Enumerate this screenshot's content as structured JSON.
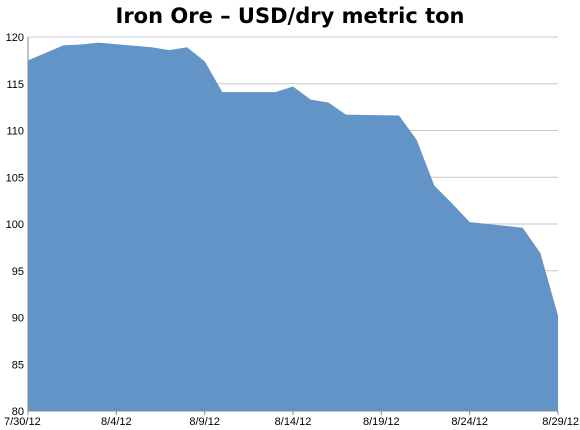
{
  "chart_data": {
    "type": "area",
    "title": "Iron Ore – USD/dry metric ton",
    "xlabel": "",
    "ylabel": "",
    "x_tick_labels": [
      "7/30/12",
      "8/4/12",
      "8/9/12",
      "8/14/12",
      "8/19/12",
      "8/24/12",
      "8/29/12"
    ],
    "y_tick_labels": [
      "80",
      "85",
      "90",
      "95",
      "100",
      "105",
      "110",
      "115",
      "120"
    ],
    "ylim": [
      80,
      120
    ],
    "xlim": [
      "2012-07-30",
      "2012-08-29"
    ],
    "grid": true,
    "x": [
      "2012-07-30",
      "2012-07-31",
      "2012-08-01",
      "2012-08-02",
      "2012-08-03",
      "2012-08-06",
      "2012-08-07",
      "2012-08-08",
      "2012-08-09",
      "2012-08-10",
      "2012-08-13",
      "2012-08-14",
      "2012-08-15",
      "2012-08-16",
      "2012-08-17",
      "2012-08-20",
      "2012-08-21",
      "2012-08-22",
      "2012-08-23",
      "2012-08-24",
      "2012-08-27",
      "2012-08-28",
      "2012-08-29"
    ],
    "series": [
      {
        "values": [
          117.5,
          118.3,
          119.1,
          119.2,
          119.4,
          118.9,
          118.6,
          118.9,
          117.4,
          114.1,
          114.1,
          114.7,
          113.3,
          113.0,
          111.7,
          111.6,
          109.0,
          104.1,
          102.2,
          100.2,
          99.6,
          96.9,
          90.2
        ]
      }
    ],
    "colors": {
      "area": "#6394C8",
      "grid": "#C9C9C9",
      "axis": "#8A8A8A"
    }
  }
}
